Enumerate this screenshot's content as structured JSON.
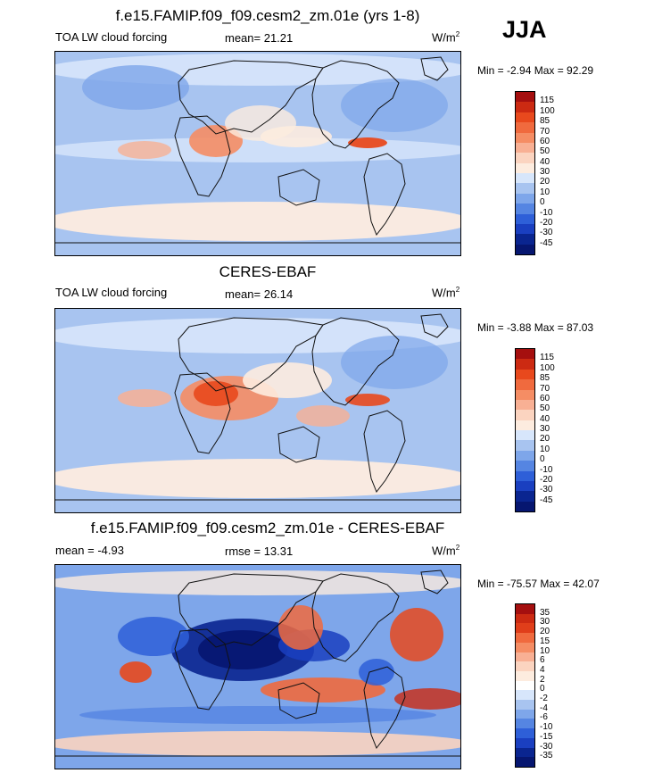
{
  "season": "JJA",
  "chart_data": [
    {
      "type": "heatmap",
      "title": "f.e15.FAMIP.f09_f09.cesm2_zm.01e (yrs 1-8)",
      "left_label": "TOA LW cloud forcing",
      "center_label": "mean=  21.21",
      "units": "W/m",
      "units_exp": "2",
      "min_max": "Min =  -2.94 Max =  92.29",
      "colorbar_levels": [
        "115",
        "100",
        "85",
        "70",
        "60",
        "50",
        "40",
        "30",
        "20",
        "10",
        "0",
        "-10",
        "-20",
        "-30",
        "-45"
      ],
      "colorbar_colors": [
        "#a50f0f",
        "#cc2a12",
        "#e8491d",
        "#f06a3e",
        "#f58d64",
        "#f8b094",
        "#fbd4c0",
        "#fdecdf",
        "#d7e6fb",
        "#a8c4f0",
        "#7ea6ea",
        "#5585e2",
        "#2e5fd8",
        "#1a3fc0",
        "#0a2590",
        "#061670"
      ]
    },
    {
      "type": "heatmap",
      "title": "CERES-EBAF",
      "left_label": "TOA LW cloud forcing",
      "center_label": "mean=  26.14",
      "units": "W/m",
      "units_exp": "2",
      "min_max": "Min =  -3.88 Max =  87.03",
      "colorbar_levels": [
        "115",
        "100",
        "85",
        "70",
        "60",
        "50",
        "40",
        "30",
        "20",
        "10",
        "0",
        "-10",
        "-20",
        "-30",
        "-45"
      ],
      "colorbar_colors": [
        "#a50f0f",
        "#cc2a12",
        "#e8491d",
        "#f06a3e",
        "#f58d64",
        "#f8b094",
        "#fbd4c0",
        "#fdecdf",
        "#d7e6fb",
        "#a8c4f0",
        "#7ea6ea",
        "#5585e2",
        "#2e5fd8",
        "#1a3fc0",
        "#0a2590",
        "#061670"
      ]
    },
    {
      "type": "heatmap",
      "title": "f.e15.FAMIP.f09_f09.cesm2_zm.01e - CERES-EBAF",
      "left_label": "mean =  -4.93",
      "center_label": "rmse =  13.31",
      "units": "W/m",
      "units_exp": "2",
      "min_max": "Min =  -75.57 Max =  42.07",
      "colorbar_levels": [
        "35",
        "30",
        "20",
        "15",
        "10",
        "6",
        "4",
        "2",
        "0",
        "-2",
        "-4",
        "-6",
        "-10",
        "-15",
        "-30",
        "-35"
      ],
      "colorbar_colors": [
        "#a50f0f",
        "#cc2a12",
        "#e03e1a",
        "#f06a3e",
        "#f58d64",
        "#f8b094",
        "#fbd4c0",
        "#fdecdf",
        "#ffffff",
        "#d7e6fb",
        "#a8c4f0",
        "#7ea6ea",
        "#5585e2",
        "#2e5fd8",
        "#1a3fc0",
        "#0a2590",
        "#061670"
      ]
    }
  ]
}
